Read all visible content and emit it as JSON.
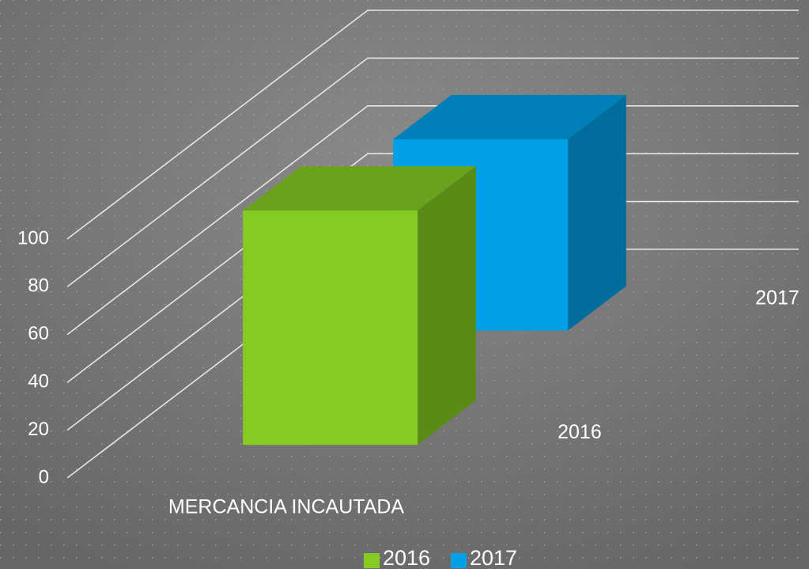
{
  "chart_data": {
    "type": "bar3d",
    "categories": [
      "MERCANCIA INCAUTADA"
    ],
    "series": [
      {
        "name": "2016",
        "color": "#84cc22",
        "values": [
          98
        ]
      },
      {
        "name": "2017",
        "color": "#00a0e6",
        "values": [
          80
        ]
      }
    ],
    "ylim": [
      0,
      100
    ],
    "yticks": [
      0,
      20,
      40,
      60,
      80,
      100
    ],
    "grid": true,
    "legend": "bottom"
  }
}
